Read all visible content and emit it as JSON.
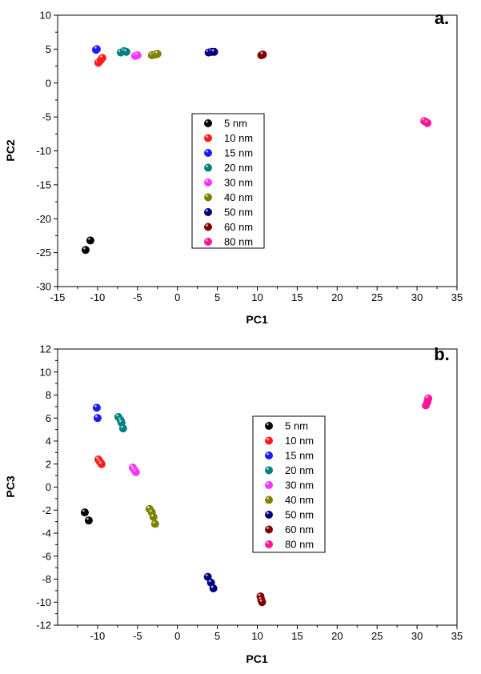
{
  "series_colors": {
    "5 nm": "#000000",
    "10 nm": "#ff1a1a",
    "15 nm": "#1a1aff",
    "20 nm": "#008080",
    "30 nm": "#ff33ff",
    "40 nm": "#808000",
    "50 nm": "#000080",
    "60 nm": "#800000",
    "80 nm": "#ff1493"
  },
  "chart_data": [
    {
      "type": "scatter",
      "panel_label": "a.",
      "title": "",
      "xlabel": "PC1",
      "ylabel": "PC2",
      "xlim": [
        -15,
        35
      ],
      "ylim": [
        -30,
        10
      ],
      "xticks": [
        "-15",
        "-10",
        "-5",
        "0",
        "5",
        "10",
        "15",
        "20",
        "25",
        "30",
        "35"
      ],
      "yticks": [
        "10",
        "5",
        "0",
        "-5",
        "-10",
        "-15",
        "-20",
        "-25",
        "-30"
      ],
      "legend_position": "center",
      "series": [
        {
          "name": "5 nm",
          "points": [
            [
              -10.9,
              -23.2
            ],
            [
              -11.5,
              -24.6
            ]
          ]
        },
        {
          "name": "10 nm",
          "points": [
            [
              -9.9,
              3.0
            ],
            [
              -9.6,
              3.4
            ],
            [
              -9.4,
              3.7
            ]
          ]
        },
        {
          "name": "15 nm",
          "points": [
            [
              -10.2,
              4.9
            ],
            [
              -10.1,
              5.0
            ]
          ]
        },
        {
          "name": "20 nm",
          "points": [
            [
              -7.1,
              4.5
            ],
            [
              -6.7,
              4.7
            ],
            [
              -6.4,
              4.6
            ]
          ]
        },
        {
          "name": "30 nm",
          "points": [
            [
              -5.3,
              4.0
            ],
            [
              -5.0,
              4.1
            ]
          ]
        },
        {
          "name": "40 nm",
          "points": [
            [
              -3.2,
              4.1
            ],
            [
              -2.8,
              4.2
            ],
            [
              -2.5,
              4.3
            ]
          ]
        },
        {
          "name": "50 nm",
          "points": [
            [
              3.9,
              4.5
            ],
            [
              4.3,
              4.6
            ],
            [
              4.6,
              4.6
            ]
          ]
        },
        {
          "name": "60 nm",
          "points": [
            [
              10.5,
              4.1
            ],
            [
              10.7,
              4.2
            ]
          ]
        },
        {
          "name": "80 nm",
          "points": [
            [
              30.9,
              -5.6
            ],
            [
              31.2,
              -5.8
            ],
            [
              31.3,
              -5.9
            ]
          ]
        }
      ]
    },
    {
      "type": "scatter",
      "panel_label": "b.",
      "title": "",
      "xlabel": "PC1",
      "ylabel": "PC3",
      "xlim": [
        -15,
        35
      ],
      "ylim": [
        -12,
        12
      ],
      "xticks": [
        "-10",
        "-5",
        "0",
        "5",
        "10",
        "15",
        "20",
        "25",
        "30",
        "35"
      ],
      "yticks": [
        "12",
        "10",
        "8",
        "6",
        "4",
        "2",
        "0",
        "-2",
        "-4",
        "-6",
        "-8",
        "-10",
        "-12"
      ],
      "legend_position": "center-right",
      "series": [
        {
          "name": "5 nm",
          "points": [
            [
              -11.6,
              -2.2
            ],
            [
              -11.1,
              -2.9
            ]
          ]
        },
        {
          "name": "10 nm",
          "points": [
            [
              -9.9,
              2.4
            ],
            [
              -9.7,
              2.2
            ],
            [
              -9.5,
              2.0
            ]
          ]
        },
        {
          "name": "15 nm",
          "points": [
            [
              -10.1,
              6.9
            ],
            [
              -10.0,
              6.0
            ]
          ]
        },
        {
          "name": "20 nm",
          "points": [
            [
              -7.4,
              6.1
            ],
            [
              -7.1,
              5.8
            ],
            [
              -7.0,
              5.6
            ],
            [
              -6.8,
              5.1
            ]
          ]
        },
        {
          "name": "30 nm",
          "points": [
            [
              -5.6,
              1.7
            ],
            [
              -5.4,
              1.5
            ],
            [
              -5.2,
              1.3
            ]
          ]
        },
        {
          "name": "40 nm",
          "points": [
            [
              -3.5,
              -1.9
            ],
            [
              -3.2,
              -2.2
            ],
            [
              -3.0,
              -2.6
            ],
            [
              -2.8,
              -3.2
            ]
          ]
        },
        {
          "name": "50 nm",
          "points": [
            [
              3.8,
              -7.8
            ],
            [
              4.2,
              -8.3
            ],
            [
              4.5,
              -8.8
            ]
          ]
        },
        {
          "name": "60 nm",
          "points": [
            [
              10.4,
              -9.5
            ],
            [
              10.5,
              -9.8
            ],
            [
              10.6,
              -10.0
            ]
          ]
        },
        {
          "name": "80 nm",
          "points": [
            [
              31.1,
              7.1
            ],
            [
              31.3,
              7.4
            ],
            [
              31.4,
              7.7
            ]
          ]
        }
      ]
    }
  ]
}
